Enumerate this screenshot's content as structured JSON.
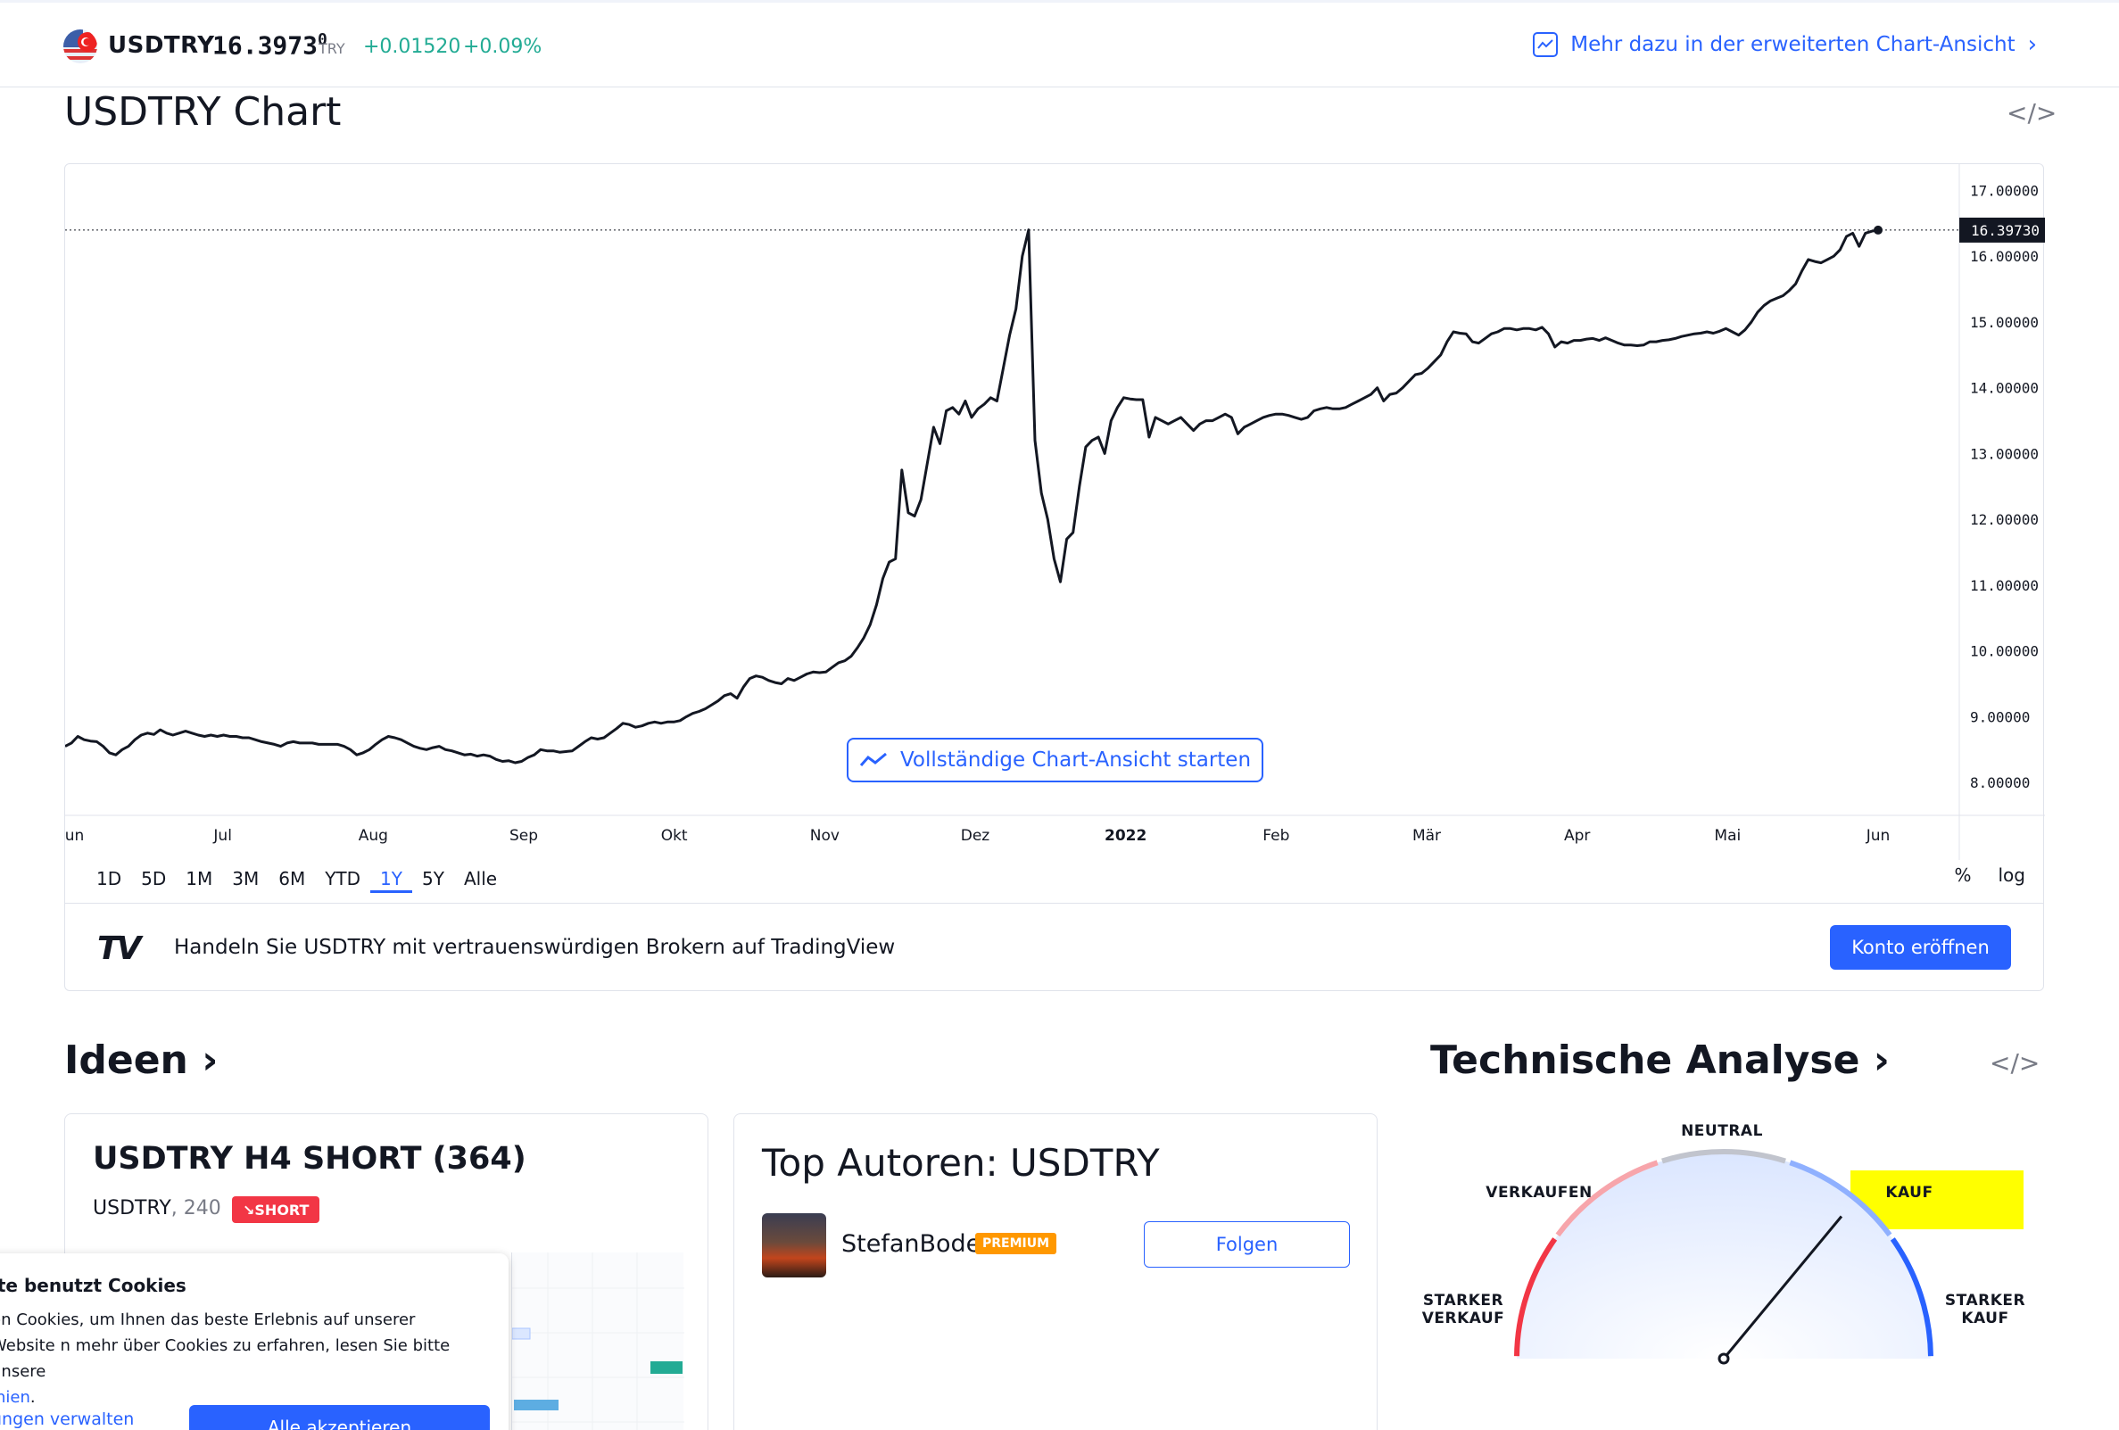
{
  "header": {
    "symbol": "USDTRY",
    "price_main": "16.3973",
    "price_sup": "0",
    "currency": "TRY",
    "change": "+0.01520",
    "change_pct": "+0.09%",
    "more_link": "Mehr dazu in der erweiterten Chart-Ansicht",
    "flag_icon": "us-tr-flag-icon"
  },
  "chart_section": {
    "title": "USDTRY Chart",
    "full_view_button": "Vollständige Chart-Ansicht starten",
    "periods": [
      "1D",
      "5D",
      "1M",
      "3M",
      "6M",
      "YTD",
      "1Y",
      "5Y",
      "Alle"
    ],
    "active_period": "1Y",
    "scale_options": [
      "%",
      "log"
    ],
    "broker_text": "Handeln Sie USDTRY mit vertrauenswürdigen Brokern auf TradingView",
    "broker_logo": "TV",
    "open_account_button": "Konto eröffnen"
  },
  "chart_data": {
    "type": "line",
    "x_labels": [
      "Jun",
      "Jul",
      "Aug",
      "Sep",
      "Okt",
      "Nov",
      "Dez",
      "2022",
      "Feb",
      "Mär",
      "Apr",
      "Mai",
      "Jun"
    ],
    "y_ticks": [
      "17.00000",
      "16.00000",
      "15.00000",
      "14.00000",
      "13.00000",
      "12.00000",
      "11.00000",
      "10.00000",
      "9.00000",
      "8.00000"
    ],
    "ylim": [
      7.5,
      17.4
    ],
    "last_price_label": "16.39730",
    "last_value": 16.3973,
    "series": [
      {
        "values": [
          8.55,
          8.6,
          8.7,
          8.65,
          8.63,
          8.62,
          8.55,
          8.45,
          8.42,
          8.5,
          8.55,
          8.65,
          8.72,
          8.75,
          8.73,
          8.8,
          8.75,
          8.72,
          8.75,
          8.78,
          8.75,
          8.72,
          8.7,
          8.72,
          8.7,
          8.72,
          8.7,
          8.7,
          8.68,
          8.68,
          8.65,
          8.62,
          8.6,
          8.58,
          8.55,
          8.6,
          8.62,
          8.6,
          8.6,
          8.6,
          8.58,
          8.58,
          8.58,
          8.58,
          8.55,
          8.5,
          8.42,
          8.45,
          8.5,
          8.58,
          8.65,
          8.7,
          8.68,
          8.65,
          8.6,
          8.55,
          8.52,
          8.5,
          8.53,
          8.55,
          8.5,
          8.48,
          8.45,
          8.42,
          8.43,
          8.4,
          8.42,
          8.4,
          8.35,
          8.32,
          8.33,
          8.3,
          8.32,
          8.38,
          8.42,
          8.5,
          8.48,
          8.48,
          8.46,
          8.47,
          8.48,
          8.55,
          8.62,
          8.68,
          8.66,
          8.68,
          8.75,
          8.82,
          8.9,
          8.88,
          8.84,
          8.86,
          8.9,
          8.92,
          8.9,
          8.92,
          8.92,
          8.94,
          9.0,
          9.05,
          9.08,
          9.12,
          9.18,
          9.24,
          9.32,
          9.35,
          9.28,
          9.45,
          9.58,
          9.62,
          9.6,
          9.55,
          9.52,
          9.5,
          9.58,
          9.55,
          9.6,
          9.65,
          9.68,
          9.67,
          9.68,
          9.75,
          9.82,
          9.85,
          9.92,
          10.05,
          10.2,
          10.4,
          10.7,
          11.1,
          11.35,
          11.4,
          12.75,
          12.1,
          12.05,
          12.3,
          12.85,
          13.4,
          13.15,
          13.65,
          13.7,
          13.6,
          13.8,
          13.55,
          13.68,
          13.75,
          13.85,
          13.8,
          14.3,
          14.8,
          15.2,
          16.0,
          16.4,
          13.2,
          12.4,
          12.0,
          11.4,
          11.05,
          11.7,
          11.8,
          12.5,
          13.1,
          13.2,
          13.25,
          13.0,
          13.5,
          13.7,
          13.85,
          13.83,
          13.82,
          13.82,
          13.25,
          13.55,
          13.5,
          13.45,
          13.5,
          13.55,
          13.45,
          13.35,
          13.45,
          13.5,
          13.5,
          13.55,
          13.6,
          13.55,
          13.3,
          13.4,
          13.45,
          13.5,
          13.55,
          13.58,
          13.6,
          13.6,
          13.58,
          13.55,
          13.52,
          13.55,
          13.65,
          13.68,
          13.7,
          13.68,
          13.68,
          13.7,
          13.75,
          13.8,
          13.85,
          13.9,
          14.0,
          13.8,
          13.9,
          13.92,
          14.0,
          14.1,
          14.2,
          14.22,
          14.3,
          14.4,
          14.5,
          14.7,
          14.85,
          14.83,
          14.82,
          14.7,
          14.68,
          14.75,
          14.82,
          14.85,
          14.9,
          14.9,
          14.88,
          14.9,
          14.9,
          14.88,
          14.92,
          14.82,
          14.62,
          14.7,
          14.68,
          14.72,
          14.72,
          14.74,
          14.75,
          14.72,
          14.76,
          14.72,
          14.68,
          14.65,
          14.65,
          14.64,
          14.65,
          14.7,
          14.7,
          14.72,
          14.73,
          14.75,
          14.78,
          14.8,
          14.82,
          14.83,
          14.85,
          14.83,
          14.86,
          14.9,
          14.85,
          14.8,
          14.88,
          15.0,
          15.15,
          15.25,
          15.32,
          15.36,
          15.4,
          15.48,
          15.58,
          15.78,
          15.95,
          15.92,
          15.9,
          15.95,
          16.0,
          16.1,
          16.3,
          16.35,
          16.15,
          16.35,
          16.38,
          16.3973
        ]
      }
    ]
  },
  "ideas": {
    "title": "Ideen ›",
    "card_title": "USDTRY H4 SHORT (364)",
    "card_symbol": "USDTRY",
    "card_timeframe": ", 240",
    "badge": "SHORT",
    "badge_icon": "arrow-down-right-icon"
  },
  "authors": {
    "title": "Top Autoren: USDTRY",
    "name": "StefanBode",
    "badge": "PREMIUM",
    "follow_button": "Folgen"
  },
  "technical": {
    "title": "Technische Analyse ›",
    "labels": {
      "neutral": "NEUTRAL",
      "sell": "VERKAUFEN",
      "buy": "KAUF",
      "strong_sell_1": "STARKER",
      "strong_sell_2": "VERKAUF",
      "strong_buy_1": "STARKER",
      "strong_buy_2": "KAUF"
    },
    "needle_value": 0.72,
    "highlight_color": "#ffff00"
  },
  "cookie": {
    "title": "ite benutzt Cookies",
    "text": "en Cookies, um Ihnen das beste Erlebnis auf unserer Website n mehr über Cookies zu erfahren, lesen Sie bitte unsere",
    "link": "inien",
    "link_tail": ".",
    "manage": "ungen verwalten",
    "accept": "Alle akzeptieren"
  },
  "colors": {
    "accent": "#2962ff",
    "positive": "#22ab94",
    "negative": "#f23645",
    "premium": "#ff9800"
  }
}
